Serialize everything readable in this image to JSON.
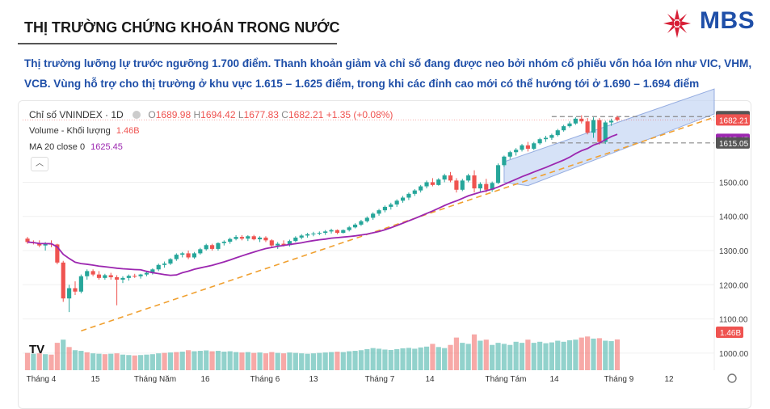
{
  "header": {
    "title": "THỊ TRƯỜNG CHỨNG KHOÁN TRONG NƯỚC",
    "logo_text": "MBS",
    "colors": {
      "brand_blue": "#1f4fa8",
      "brand_red": "#d71f36"
    }
  },
  "summary": "Thị trường lưỡng lự trước ngưỡng 1.700 điểm. Thanh khoản giảm và chỉ số đang được neo bởi nhóm cổ phiếu vốn hóa lớn như VIC, VHM, VCB. Vùng hỗ trợ cho thị trường ở khu vực 1.615 – 1.625 điểm, trong khi các đỉnh cao mới có thể hướng tới ở 1.690 – 1.694 điểm",
  "legend": {
    "symbol": "Chỉ số VNINDEX · 1D",
    "o_label": "O",
    "o": "1689.98",
    "h_label": "H",
    "h": "1694.42",
    "l_label": "L",
    "l": "1677.83",
    "c_label": "C",
    "c": "1682.21",
    "change": "+1.35 (+0.08%)",
    "volume_label": "Volume - Khối lượng",
    "volume": "1.46B",
    "ma_label": "MA 20 close 0",
    "ma": "1625.45",
    "collapse_icon": "chevron-up-icon"
  },
  "chart_data": {
    "type": "candlestick",
    "y_axis": {
      "ticks": [
        1000,
        1100,
        1200,
        1300,
        1400,
        1500
      ],
      "range": [
        950,
        1740
      ]
    },
    "x_ticks": [
      "Tháng 4",
      "15",
      "Tháng Năm",
      "16",
      "Tháng 6",
      "13",
      "Tháng 7",
      "14",
      "Tháng Tám",
      "14",
      "Tháng 9",
      "12"
    ],
    "price_labels": [
      {
        "value": 1692.03,
        "text": "1692.03",
        "color": "#555555"
      },
      {
        "value": 1682.21,
        "text": "1682.21",
        "color": "#ef5350"
      },
      {
        "value": 1625.45,
        "text": "1625.45",
        "color": "#9c27b0"
      },
      {
        "value": 1615.05,
        "text": "1615.05",
        "color": "#555555"
      }
    ],
    "volume_label": {
      "text": "1.46B",
      "color": "#ef5350"
    },
    "up_color": "#26a69a",
    "down_color": "#ef5350",
    "ma_color": "#9c27b0",
    "trend_color": "#f0a030",
    "channel_color": "#c8d8f4",
    "candles": [
      [
        1335,
        1340,
        1320,
        1325
      ],
      [
        1325,
        1330,
        1318,
        1322
      ],
      [
        1322,
        1330,
        1310,
        1315
      ],
      [
        1315,
        1325,
        1300,
        1320
      ],
      [
        1320,
        1330,
        1310,
        1318
      ],
      [
        1318,
        1320,
        1260,
        1265
      ],
      [
        1265,
        1270,
        1150,
        1160
      ],
      [
        1160,
        1200,
        1120,
        1190
      ],
      [
        1190,
        1210,
        1170,
        1180
      ],
      [
        1180,
        1230,
        1175,
        1225
      ],
      [
        1225,
        1245,
        1215,
        1240
      ],
      [
        1240,
        1245,
        1225,
        1230
      ],
      [
        1230,
        1240,
        1215,
        1220
      ],
      [
        1220,
        1232,
        1215,
        1228
      ],
      [
        1228,
        1235,
        1215,
        1222
      ],
      [
        1222,
        1228,
        1140,
        1215
      ],
      [
        1215,
        1225,
        1205,
        1220
      ],
      [
        1220,
        1230,
        1212,
        1226
      ],
      [
        1226,
        1232,
        1220,
        1225
      ],
      [
        1225,
        1232,
        1218,
        1230
      ],
      [
        1230,
        1238,
        1225,
        1235
      ],
      [
        1235,
        1248,
        1230,
        1245
      ],
      [
        1245,
        1262,
        1240,
        1258
      ],
      [
        1258,
        1268,
        1250,
        1262
      ],
      [
        1262,
        1278,
        1258,
        1275
      ],
      [
        1275,
        1292,
        1270,
        1288
      ],
      [
        1288,
        1296,
        1280,
        1292
      ],
      [
        1292,
        1300,
        1275,
        1280
      ],
      [
        1280,
        1296,
        1276,
        1292
      ],
      [
        1292,
        1308,
        1288,
        1304
      ],
      [
        1304,
        1320,
        1300,
        1316
      ],
      [
        1316,
        1320,
        1300,
        1305
      ],
      [
        1305,
        1324,
        1300,
        1322
      ],
      [
        1322,
        1330,
        1315,
        1326
      ],
      [
        1326,
        1338,
        1320,
        1334
      ],
      [
        1334,
        1345,
        1330,
        1340
      ],
      [
        1340,
        1345,
        1330,
        1335
      ],
      [
        1335,
        1345,
        1328,
        1342
      ],
      [
        1342,
        1346,
        1330,
        1333
      ],
      [
        1333,
        1342,
        1325,
        1338
      ],
      [
        1338,
        1342,
        1325,
        1330
      ],
      [
        1330,
        1333,
        1310,
        1315
      ],
      [
        1315,
        1325,
        1305,
        1320
      ],
      [
        1320,
        1330,
        1312,
        1316
      ],
      [
        1316,
        1332,
        1312,
        1328
      ],
      [
        1328,
        1342,
        1325,
        1338
      ],
      [
        1338,
        1348,
        1333,
        1344
      ],
      [
        1344,
        1352,
        1338,
        1348
      ],
      [
        1348,
        1355,
        1342,
        1350
      ],
      [
        1350,
        1356,
        1345,
        1352
      ],
      [
        1352,
        1360,
        1346,
        1356
      ],
      [
        1356,
        1364,
        1350,
        1360
      ],
      [
        1360,
        1362,
        1348,
        1352
      ],
      [
        1352,
        1362,
        1350,
        1360
      ],
      [
        1360,
        1372,
        1356,
        1368
      ],
      [
        1368,
        1380,
        1365,
        1376
      ],
      [
        1376,
        1390,
        1372,
        1386
      ],
      [
        1386,
        1400,
        1382,
        1396
      ],
      [
        1396,
        1412,
        1390,
        1408
      ],
      [
        1408,
        1422,
        1402,
        1418
      ],
      [
        1418,
        1432,
        1412,
        1428
      ],
      [
        1428,
        1440,
        1420,
        1435
      ],
      [
        1435,
        1450,
        1428,
        1446
      ],
      [
        1446,
        1460,
        1440,
        1455
      ],
      [
        1455,
        1470,
        1448,
        1466
      ],
      [
        1466,
        1480,
        1460,
        1476
      ],
      [
        1476,
        1492,
        1470,
        1488
      ],
      [
        1488,
        1505,
        1482,
        1500
      ],
      [
        1500,
        1512,
        1488,
        1492
      ],
      [
        1492,
        1512,
        1490,
        1508
      ],
      [
        1508,
        1525,
        1500,
        1520
      ],
      [
        1520,
        1530,
        1500,
        1505
      ],
      [
        1505,
        1512,
        1470,
        1478
      ],
      [
        1478,
        1510,
        1474,
        1505
      ],
      [
        1505,
        1525,
        1500,
        1520
      ],
      [
        1520,
        1535,
        1470,
        1482
      ],
      [
        1482,
        1500,
        1470,
        1495
      ],
      [
        1495,
        1510,
        1470,
        1478
      ],
      [
        1478,
        1502,
        1472,
        1498
      ],
      [
        1498,
        1555,
        1495,
        1550
      ],
      [
        1550,
        1578,
        1545,
        1575
      ],
      [
        1575,
        1592,
        1568,
        1588
      ],
      [
        1588,
        1600,
        1578,
        1595
      ],
      [
        1595,
        1612,
        1590,
        1608
      ],
      [
        1608,
        1618,
        1590,
        1598
      ],
      [
        1598,
        1618,
        1594,
        1614
      ],
      [
        1614,
        1630,
        1610,
        1626
      ],
      [
        1626,
        1636,
        1618,
        1630
      ],
      [
        1630,
        1642,
        1624,
        1638
      ],
      [
        1638,
        1656,
        1634,
        1652
      ],
      [
        1652,
        1668,
        1648,
        1664
      ],
      [
        1664,
        1678,
        1660,
        1672
      ],
      [
        1672,
        1690,
        1668,
        1686
      ],
      [
        1686,
        1696,
        1672,
        1678
      ],
      [
        1678,
        1688,
        1640,
        1645
      ],
      [
        1645,
        1690,
        1630,
        1682
      ],
      [
        1682,
        1688,
        1610,
        1618
      ],
      [
        1618,
        1680,
        1612,
        1675
      ],
      [
        1675,
        1686,
        1665,
        1680
      ],
      [
        1689.98,
        1694.42,
        1677.83,
        1682.21
      ]
    ],
    "volumes": [
      [
        0.82,
        0
      ],
      [
        0.78,
        1
      ],
      [
        0.8,
        0
      ],
      [
        0.76,
        1
      ],
      [
        0.74,
        0
      ],
      [
        1.3,
        0
      ],
      [
        1.45,
        1
      ],
      [
        1.1,
        0
      ],
      [
        0.95,
        1
      ],
      [
        0.92,
        1
      ],
      [
        0.85,
        0
      ],
      [
        0.8,
        1
      ],
      [
        0.78,
        1
      ],
      [
        0.76,
        0
      ],
      [
        0.78,
        1
      ],
      [
        0.8,
        0
      ],
      [
        0.74,
        1
      ],
      [
        0.72,
        1
      ],
      [
        0.7,
        0
      ],
      [
        0.72,
        1
      ],
      [
        0.74,
        1
      ],
      [
        0.76,
        1
      ],
      [
        0.8,
        1
      ],
      [
        0.82,
        0
      ],
      [
        0.84,
        1
      ],
      [
        0.86,
        0
      ],
      [
        0.88,
        1
      ],
      [
        0.95,
        0
      ],
      [
        0.9,
        1
      ],
      [
        0.92,
        1
      ],
      [
        0.94,
        1
      ],
      [
        0.9,
        0
      ],
      [
        0.92,
        1
      ],
      [
        0.88,
        1
      ],
      [
        0.9,
        1
      ],
      [
        0.86,
        1
      ],
      [
        0.84,
        0
      ],
      [
        0.86,
        1
      ],
      [
        0.82,
        0
      ],
      [
        0.84,
        1
      ],
      [
        0.8,
        0
      ],
      [
        0.86,
        0
      ],
      [
        0.82,
        1
      ],
      [
        0.8,
        0
      ],
      [
        0.84,
        1
      ],
      [
        0.82,
        1
      ],
      [
        0.8,
        1
      ],
      [
        0.78,
        1
      ],
      [
        0.8,
        1
      ],
      [
        0.82,
        1
      ],
      [
        0.84,
        1
      ],
      [
        0.86,
        1
      ],
      [
        0.88,
        0
      ],
      [
        0.86,
        1
      ],
      [
        0.9,
        1
      ],
      [
        0.92,
        1
      ],
      [
        0.95,
        1
      ],
      [
        1.0,
        1
      ],
      [
        1.05,
        1
      ],
      [
        1.02,
        1
      ],
      [
        0.98,
        1
      ],
      [
        0.96,
        1
      ],
      [
        1.0,
        1
      ],
      [
        1.04,
        1
      ],
      [
        1.06,
        1
      ],
      [
        1.02,
        1
      ],
      [
        1.08,
        1
      ],
      [
        1.12,
        1
      ],
      [
        1.25,
        0
      ],
      [
        1.1,
        1
      ],
      [
        1.05,
        1
      ],
      [
        1.2,
        0
      ],
      [
        1.55,
        0
      ],
      [
        1.3,
        1
      ],
      [
        1.25,
        1
      ],
      [
        1.7,
        0
      ],
      [
        1.4,
        1
      ],
      [
        1.45,
        0
      ],
      [
        1.2,
        1
      ],
      [
        1.3,
        1
      ],
      [
        1.25,
        1
      ],
      [
        1.2,
        1
      ],
      [
        1.35,
        1
      ],
      [
        1.3,
        1
      ],
      [
        1.45,
        0
      ],
      [
        1.3,
        1
      ],
      [
        1.35,
        1
      ],
      [
        1.28,
        1
      ],
      [
        1.32,
        1
      ],
      [
        1.4,
        1
      ],
      [
        1.35,
        1
      ],
      [
        1.42,
        1
      ],
      [
        1.45,
        1
      ],
      [
        1.55,
        0
      ],
      [
        1.6,
        0
      ],
      [
        1.5,
        1
      ],
      [
        1.52,
        0
      ],
      [
        1.4,
        1
      ],
      [
        1.38,
        1
      ],
      [
        1.46,
        0
      ]
    ]
  }
}
